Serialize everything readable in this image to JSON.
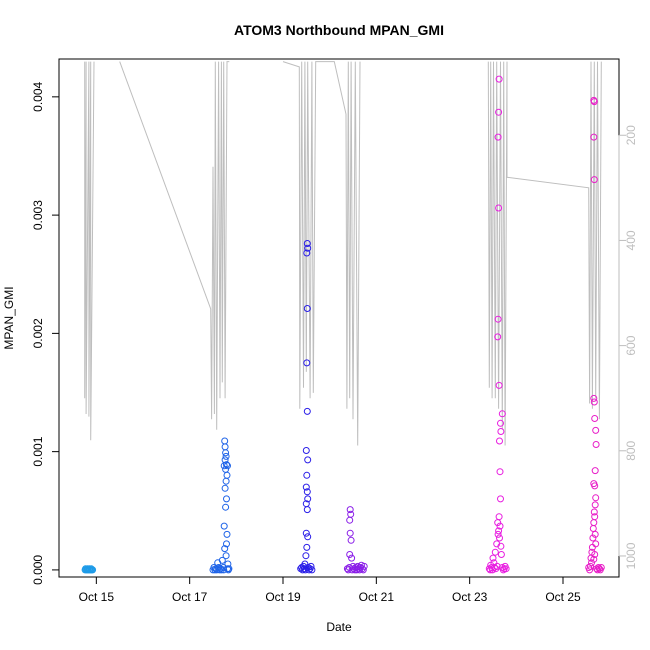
{
  "chart_data": {
    "type": "scatter",
    "title": "ATOM3 Northbound MPAN_GMI",
    "xlabel": "Date",
    "ylabel": "MPAN_GMI",
    "x_ticks": [
      "Oct 15",
      "Oct 17",
      "Oct 19",
      "Oct 21",
      "Oct 23",
      "Oct 25"
    ],
    "x_tick_days": [
      15,
      17,
      19,
      21,
      23,
      25
    ],
    "xlim_days": [
      14.2,
      26.2
    ],
    "ylim": [
      -6e-05,
      0.00432
    ],
    "y_ticks": [
      "0.000",
      "0.001",
      "0.002",
      "0.003",
      "0.004"
    ],
    "y_tick_values": [
      0,
      0.001,
      0.002,
      0.003,
      0.004
    ],
    "y2_ticks": [
      "200",
      "400",
      "600",
      "800",
      "1000"
    ],
    "y2_tick_values": [
      200,
      400,
      600,
      800,
      1000
    ],
    "y2lim": [
      55,
      1040
    ],
    "y2_reversed": true,
    "grid": false,
    "legend": "none",
    "colors": {
      "profile_line": "#bebebe",
      "series": [
        "#1e9be8",
        "#1e63e8",
        "#2a1ee8",
        "#8a1ee8",
        "#e81ee0",
        "#e81ec8"
      ]
    },
    "series": [
      {
        "day_range": [
          14.75,
          14.95
        ],
        "values": [
          [
            14.76,
            0
          ],
          [
            14.78,
            0
          ],
          [
            14.8,
            0
          ],
          [
            14.82,
            0
          ],
          [
            14.84,
            0
          ],
          [
            14.86,
            0
          ],
          [
            14.88,
            0
          ],
          [
            14.9,
            0
          ],
          [
            14.92,
            0
          ],
          [
            14.77,
            1e-05
          ],
          [
            14.81,
            1e-05
          ],
          [
            14.85,
            1e-05
          ],
          [
            14.89,
            1e-05
          ]
        ]
      },
      {
        "day_range": [
          17.45,
          17.85
        ],
        "values": [
          [
            17.75,
            0.00109
          ],
          [
            17.76,
            0.00104
          ],
          [
            17.77,
            0.00099
          ],
          [
            17.78,
            0.00096
          ],
          [
            17.76,
            0.00093
          ],
          [
            17.79,
            0.00089
          ],
          [
            17.81,
            0.00088
          ],
          [
            17.74,
            0.00088
          ],
          [
            17.77,
            0.00085
          ],
          [
            17.8,
            0.0008
          ],
          [
            17.78,
            0.00075
          ],
          [
            17.76,
            0.00069
          ],
          [
            17.79,
            0.0006
          ],
          [
            17.77,
            0.00053
          ],
          [
            17.74,
            0.00037
          ],
          [
            17.8,
            0.0003
          ],
          [
            17.79,
            0.00022
          ],
          [
            17.75,
            0.00018
          ],
          [
            17.78,
            0.00012
          ],
          [
            17.6,
            6e-05
          ],
          [
            17.7,
            8e-05
          ],
          [
            17.82,
            5e-05
          ],
          [
            17.5,
            0
          ],
          [
            17.52,
            2e-05
          ],
          [
            17.54,
            0
          ],
          [
            17.56,
            1e-05
          ],
          [
            17.58,
            0
          ],
          [
            17.62,
            2e-05
          ],
          [
            17.64,
            0
          ],
          [
            17.66,
            1e-05
          ],
          [
            17.68,
            0
          ],
          [
            17.72,
            2e-05
          ],
          [
            17.73,
            0
          ],
          [
            17.81,
            1e-05
          ],
          [
            17.83,
            0
          ],
          [
            17.84,
            1e-05
          ]
        ]
      },
      {
        "day_range": [
          19.35,
          19.65
        ],
        "values": [
          [
            19.52,
            0.00276
          ],
          [
            19.53,
            0.00272
          ],
          [
            19.51,
            0.00268
          ],
          [
            19.52,
            0.00221
          ],
          [
            19.51,
            0.00175
          ],
          [
            19.52,
            0.00134
          ],
          [
            19.5,
            0.00101
          ],
          [
            19.53,
            0.00093
          ],
          [
            19.51,
            0.0008
          ],
          [
            19.5,
            0.0007
          ],
          [
            19.52,
            0.00066
          ],
          [
            19.53,
            0.0006
          ],
          [
            19.5,
            0.00056
          ],
          [
            19.52,
            0.00051
          ],
          [
            19.5,
            0.00031
          ],
          [
            19.53,
            0.00028
          ],
          [
            19.51,
            0.00019
          ],
          [
            19.49,
            0.00012
          ],
          [
            19.4,
            2e-05
          ],
          [
            19.42,
            0
          ],
          [
            19.44,
            3e-05
          ],
          [
            19.46,
            1e-05
          ],
          [
            19.48,
            0
          ],
          [
            19.54,
            2e-05
          ],
          [
            19.56,
            0
          ],
          [
            19.58,
            1e-05
          ],
          [
            19.6,
            3e-05
          ],
          [
            19.62,
            0
          ],
          [
            19.38,
            1e-05
          ],
          [
            19.47,
            5e-05
          ]
        ]
      },
      {
        "day_range": [
          20.35,
          20.8
        ],
        "values": [
          [
            20.44,
            0.00051
          ],
          [
            20.45,
            0.00047
          ],
          [
            20.43,
            0.00042
          ],
          [
            20.44,
            0.00031
          ],
          [
            20.46,
            0.00025
          ],
          [
            20.43,
            0.00013
          ],
          [
            20.47,
            0.0001
          ],
          [
            20.38,
            1e-05
          ],
          [
            20.4,
            0
          ],
          [
            20.42,
            2e-05
          ],
          [
            20.48,
            0
          ],
          [
            20.5,
            3e-05
          ],
          [
            20.52,
            1e-05
          ],
          [
            20.54,
            0
          ],
          [
            20.56,
            2e-05
          ],
          [
            20.58,
            0
          ],
          [
            20.6,
            3e-05
          ],
          [
            20.62,
            1e-05
          ],
          [
            20.64,
            0
          ],
          [
            20.66,
            2e-05
          ],
          [
            20.68,
            4e-05
          ],
          [
            20.7,
            1e-05
          ],
          [
            20.72,
            0
          ],
          [
            20.74,
            3e-05
          ]
        ]
      },
      {
        "day_range": [
          23.4,
          23.8
        ],
        "values": [
          [
            23.63,
            0.00415
          ],
          [
            23.62,
            0.00387
          ],
          [
            23.61,
            0.00366
          ],
          [
            23.62,
            0.00306
          ],
          [
            23.61,
            0.00212
          ],
          [
            23.6,
            0.00197
          ],
          [
            23.63,
            0.00156
          ],
          [
            23.7,
            0.00132
          ],
          [
            23.66,
            0.00124
          ],
          [
            23.67,
            0.00117
          ],
          [
            23.64,
            0.00109
          ],
          [
            23.65,
            0.00083
          ],
          [
            23.66,
            0.0006
          ],
          [
            23.63,
            0.00045
          ],
          [
            23.6,
            0.0004
          ],
          [
            23.65,
            0.00037
          ],
          [
            23.62,
            0.00033
          ],
          [
            23.61,
            0.0003
          ],
          [
            23.64,
            0.00027
          ],
          [
            23.58,
            0.00022
          ],
          [
            23.67,
            0.0002
          ],
          [
            23.55,
            0.00015
          ],
          [
            23.68,
            0.00013
          ],
          [
            23.5,
            0.0001
          ],
          [
            23.52,
            6e-05
          ],
          [
            23.45,
            4e-05
          ],
          [
            23.42,
            1e-05
          ],
          [
            23.44,
            0
          ],
          [
            23.47,
            2e-05
          ],
          [
            23.49,
            0
          ],
          [
            23.53,
            2e-05
          ],
          [
            23.56,
            1e-05
          ],
          [
            23.59,
            3e-05
          ],
          [
            23.7,
            2e-05
          ],
          [
            23.72,
            0
          ],
          [
            23.74,
            1e-05
          ],
          [
            23.76,
            3e-05
          ],
          [
            23.78,
            1e-05
          ]
        ]
      },
      {
        "day_range": [
          25.5,
          25.85
        ],
        "values": [
          [
            25.66,
            0.00397
          ],
          [
            25.67,
            0.00396
          ],
          [
            25.66,
            0.00366
          ],
          [
            25.67,
            0.0033
          ],
          [
            25.66,
            0.00145
          ],
          [
            25.67,
            0.00142
          ],
          [
            25.68,
            0.00128
          ],
          [
            25.7,
            0.00118
          ],
          [
            25.71,
            0.00106
          ],
          [
            25.69,
            0.00084
          ],
          [
            25.66,
            0.00073
          ],
          [
            25.68,
            0.00071
          ],
          [
            25.7,
            0.00061
          ],
          [
            25.69,
            0.00055
          ],
          [
            25.67,
            0.00049
          ],
          [
            25.68,
            0.00045
          ],
          [
            25.66,
            0.0004
          ],
          [
            25.65,
            0.00035
          ],
          [
            25.69,
            0.0003
          ],
          [
            25.64,
            0.00027
          ],
          [
            25.7,
            0.00022
          ],
          [
            25.63,
            0.00019
          ],
          [
            25.62,
            0.00015
          ],
          [
            25.68,
            0.00013
          ],
          [
            25.6,
            0.0001
          ],
          [
            25.66,
            9e-05
          ],
          [
            25.61,
            6e-05
          ],
          [
            25.55,
            2e-05
          ],
          [
            25.57,
            0
          ],
          [
            25.59,
            3e-05
          ],
          [
            25.72,
            1e-05
          ],
          [
            25.74,
            0
          ],
          [
            25.76,
            2e-05
          ],
          [
            25.78,
            1e-05
          ],
          [
            25.8,
            0
          ],
          [
            25.82,
            2e-05
          ]
        ]
      }
    ],
    "profiles": [
      {
        "segments": [
          [
            14.75,
            60,
            14.75,
            700,
            14.78,
            60,
            14.78,
            730,
            14.84,
            60,
            14.84,
            735,
            14.88,
            60,
            14.88,
            780,
            14.95,
            60
          ]
        ]
      },
      {
        "segments": [
          [
            15.5,
            60,
            17.45,
            530,
            17.47,
            740,
            17.5,
            260,
            17.53,
            730,
            17.55,
            60,
            17.58,
            760,
            17.62,
            60,
            17.65,
            700,
            17.68,
            60,
            17.7,
            670,
            17.73,
            60,
            17.76,
            700,
            17.8,
            60,
            17.85,
            60
          ]
        ]
      },
      {
        "segments": [
          [
            19.0,
            60,
            19.35,
            70,
            19.36,
            720,
            19.4,
            60,
            19.44,
            680,
            19.47,
            60,
            19.5,
            650,
            19.53,
            60,
            19.58,
            700,
            19.62,
            60,
            19.65,
            690,
            19.7,
            60,
            20.1,
            60,
            20.35,
            160,
            20.37,
            720,
            20.4,
            60,
            20.43,
            700,
            20.46,
            60,
            20.5,
            740,
            20.55,
            60,
            20.6,
            790,
            20.65,
            60
          ]
        ]
      },
      {
        "segments": [
          [
            23.4,
            60,
            23.42,
            680,
            23.45,
            60,
            23.48,
            700,
            23.51,
            60,
            23.55,
            700,
            23.58,
            60,
            23.62,
            720,
            23.66,
            60,
            23.7,
            760,
            23.73,
            60,
            23.76,
            790,
            23.8,
            60,
            23.8,
            280,
            25.55,
            300,
            25.57,
            710,
            25.6,
            60,
            25.63,
            720,
            25.67,
            60,
            25.7,
            700,
            25.74,
            60,
            25.78,
            740,
            25.82,
            60
          ]
        ]
      }
    ]
  }
}
